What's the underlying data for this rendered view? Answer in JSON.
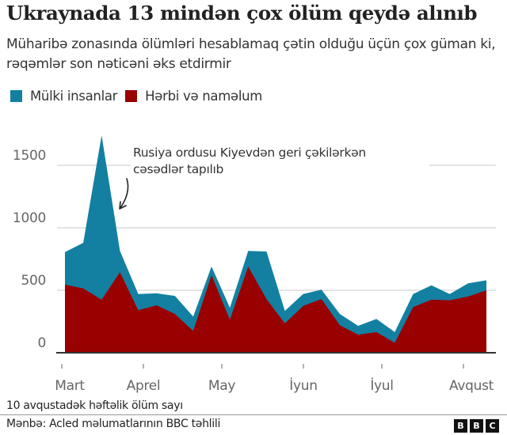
{
  "header": {
    "title": "Ukraynada 13 mindən çox ölüm qeydə alınıb",
    "subtitle": "Müharibə zonasında ölümləri hesablamaq çətin olduğu üçün çox güman ki, rəqəmlər son nəticəni əks etdirmir"
  },
  "legend": {
    "items": [
      {
        "label": "Mülki insanlar",
        "color": "#1380A1"
      },
      {
        "label": "Hərbi və naməlum",
        "color": "#990000"
      }
    ]
  },
  "annotation": {
    "line1": "Rusiya ordusu Kiyevdən geri çəkilərkən",
    "line2": "cəsədlər tapılıb"
  },
  "footer": {
    "note": "10 avqustadək həftəlik ölüm sayı",
    "source": "Mənbə: Acled məlumatlarının BBC təhlili",
    "logo": [
      "B",
      "B",
      "C"
    ]
  },
  "chart_data": {
    "type": "area",
    "stacked": true,
    "title": "Ukraynada 13 mindən çox ölüm qeydə alınıb",
    "subtitle": "Müharibə zonasında ölümləri hesablamaq çətin olduğu üçün çox güman ki, rəqəmlər son nəticəni əks etdirmir",
    "xlabel": "10 avqustadək həftəlik ölüm sayı",
    "ylabel": "",
    "ylim": [
      0,
      1750
    ],
    "yticks": [
      0,
      500,
      1000,
      1500
    ],
    "ytick_labels": [
      "0",
      "500",
      "1000",
      "1500"
    ],
    "xtick_labels": [
      "Mart",
      "Aprel",
      "May",
      "İyun",
      "İyul",
      "Avqust"
    ],
    "grid": true,
    "legend_position": "top-left",
    "x": [
      "w1",
      "w2",
      "w3",
      "w4",
      "w5",
      "w6",
      "w7",
      "w8",
      "w9",
      "w10",
      "w11",
      "w12",
      "w13",
      "w14",
      "w15",
      "w16",
      "w17",
      "w18",
      "w19",
      "w20",
      "w21",
      "w22",
      "w23",
      "w24"
    ],
    "series": [
      {
        "name": "Hərbi və naməlum",
        "color": "#990000",
        "values": [
          545,
          515,
          425,
          645,
          340,
          380,
          310,
          175,
          620,
          265,
          690,
          430,
          235,
          375,
          430,
          220,
          145,
          165,
          80,
          365,
          425,
          420,
          450,
          500
        ]
      },
      {
        "name": "Mülki insanlar",
        "color": "#1380A1",
        "values": [
          260,
          365,
          1315,
          170,
          130,
          95,
          145,
          115,
          70,
          95,
          125,
          380,
          100,
          95,
          75,
          90,
          70,
          105,
          85,
          105,
          115,
          50,
          105,
          80
        ]
      }
    ],
    "totals": [
      805,
      880,
      1740,
      815,
      470,
      475,
      455,
      290,
      690,
      360,
      815,
      810,
      335,
      470,
      505,
      310,
      215,
      270,
      165,
      470,
      540,
      470,
      555,
      580
    ],
    "annotation": "Rusiya ordusu Kiyevdən geri çəkilərkən cəsədlər tapılıb",
    "source": "Mənbə: Acled məlumatlarının BBC təhlili"
  }
}
